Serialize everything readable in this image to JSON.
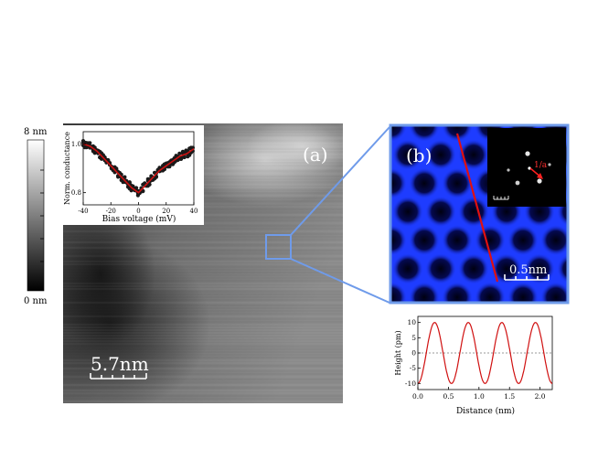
{
  "colorbar": {
    "max_label": "8 nm",
    "min_label": "0 nm"
  },
  "panel_a": {
    "label": "(a)",
    "scalebar_label": "5.7nm",
    "inset_spectrum": {
      "ylabel": "Norm. conductance",
      "xlabel": "Bias voltage (mV)",
      "xticks": [
        "-40",
        "-20",
        "0",
        "20",
        "40"
      ],
      "yticks": [
        "0.8",
        "1.0"
      ]
    }
  },
  "panel_b": {
    "label": "(b)",
    "scalebar_label": "0.5nm",
    "fft_inset_label": "1/a"
  },
  "colors": {
    "zoom_frame": "#6f9bea",
    "line_cut": "#e01010",
    "profile_line": "#d01010",
    "conductance_fit": "#cc1111",
    "atom_blue": "#1e3cff"
  },
  "chart_data": [
    {
      "type": "line",
      "xlabel": "Bias voltage (mV)",
      "ylabel": "Norm. conductance",
      "xlim": [
        -40,
        40
      ],
      "ylim": [
        0.75,
        1.05
      ],
      "x_ticks": [
        -40,
        -20,
        0,
        20,
        40
      ],
      "y_ticks": [
        0.8,
        1.0
      ],
      "x": [
        -40,
        -35,
        -30,
        -25,
        -20,
        -15,
        -10,
        -5,
        0,
        5,
        10,
        15,
        20,
        25,
        30,
        35,
        40
      ],
      "series": [
        {
          "values": [
            1.0,
            0.99,
            0.97,
            0.94,
            0.91,
            0.88,
            0.85,
            0.82,
            0.8,
            0.83,
            0.86,
            0.89,
            0.91,
            0.93,
            0.95,
            0.96,
            0.98
          ]
        }
      ]
    },
    {
      "type": "line",
      "xlabel": "Distance (nm)",
      "ylabel": "Height (pm)",
      "xlim": [
        0.0,
        2.2
      ],
      "ylim": [
        -12,
        12
      ],
      "x_ticks": [
        0.0,
        0.5,
        1.0,
        1.5,
        2.0
      ],
      "y_ticks": [
        -10,
        -5,
        0,
        5,
        10
      ],
      "period_nm": 0.55,
      "amplitude_pm": 10,
      "x": [
        0.0,
        0.1375,
        0.275,
        0.4125,
        0.55,
        0.6875,
        0.825,
        0.9625,
        1.1,
        1.2375,
        1.375,
        1.5125,
        1.65,
        1.7875,
        1.925,
        2.0625,
        2.2
      ],
      "series": [
        {
          "values": [
            -10,
            0,
            10,
            0,
            -10,
            0,
            10,
            0,
            -10,
            0,
            10,
            0,
            -10,
            0,
            10,
            0,
            -10
          ]
        }
      ]
    }
  ]
}
